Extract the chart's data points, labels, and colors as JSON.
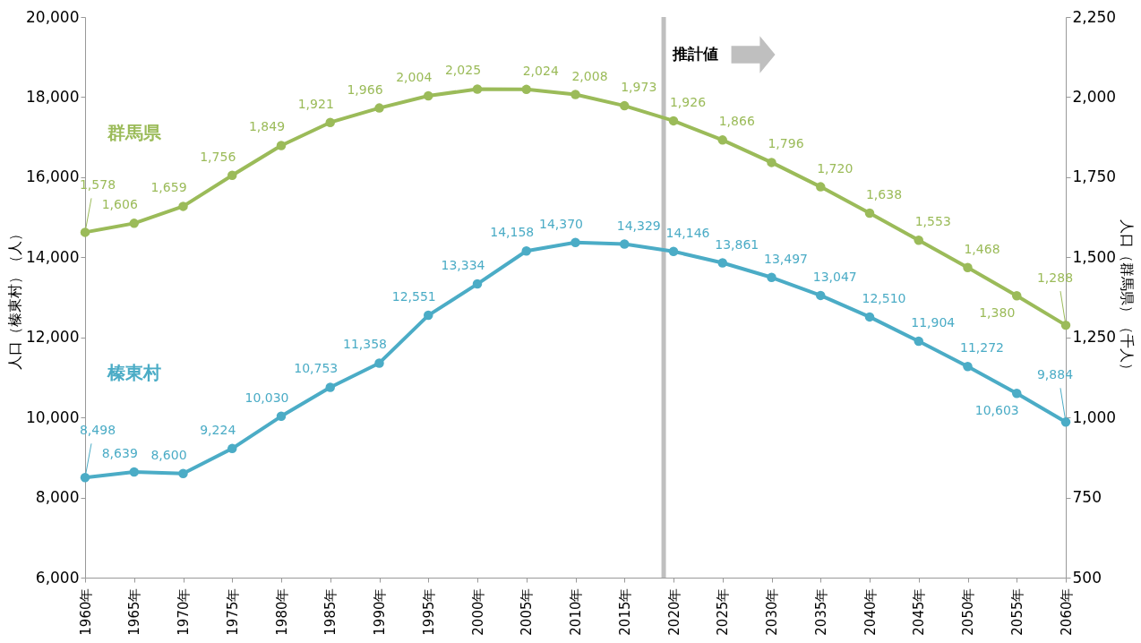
{
  "chart_data": {
    "type": "line",
    "ylabel": "人口（榛東村）（人）",
    "y2label": "人口（群馬県）（千人）",
    "x": [
      1960,
      1965,
      1970,
      1975,
      1980,
      1985,
      1990,
      1995,
      2000,
      2005,
      2010,
      2015,
      2020,
      2025,
      2030,
      2035,
      2040,
      2045,
      2050,
      2055,
      2060
    ],
    "xlim": [
      1960,
      2060
    ],
    "xticks": [
      {
        "value": 1960,
        "label": "1960年"
      },
      {
        "value": 1965,
        "label": "1965年"
      },
      {
        "value": 1970,
        "label": "1970年"
      },
      {
        "value": 1975,
        "label": "1975年"
      },
      {
        "value": 1980,
        "label": "1980年"
      },
      {
        "value": 1985,
        "label": "1985年"
      },
      {
        "value": 1990,
        "label": "1990年"
      },
      {
        "value": 1995,
        "label": "1995年"
      },
      {
        "value": 2000,
        "label": "2000年"
      },
      {
        "value": 2005,
        "label": "2005年"
      },
      {
        "value": 2010,
        "label": "2010年"
      },
      {
        "value": 2015,
        "label": "2015年"
      },
      {
        "value": 2020,
        "label": "2020年"
      },
      {
        "value": 2025,
        "label": "2025年"
      },
      {
        "value": 2030,
        "label": "2030年"
      },
      {
        "value": 2035,
        "label": "2035年"
      },
      {
        "value": 2040,
        "label": "2040年"
      },
      {
        "value": 2045,
        "label": "2045年"
      },
      {
        "value": 2050,
        "label": "2050年"
      },
      {
        "value": 2055,
        "label": "2055年"
      },
      {
        "value": 2060,
        "label": "2060年"
      }
    ],
    "ylim": [
      6000,
      20000
    ],
    "yticks": [
      {
        "value": 6000,
        "label": "6,000"
      },
      {
        "value": 8000,
        "label": "8,000"
      },
      {
        "value": 10000,
        "label": "10,000"
      },
      {
        "value": 12000,
        "label": "12,000"
      },
      {
        "value": 14000,
        "label": "14,000"
      },
      {
        "value": 16000,
        "label": "16,000"
      },
      {
        "value": 18000,
        "label": "18,000"
      },
      {
        "value": 20000,
        "label": "20,000"
      }
    ],
    "y2lim": [
      500,
      2250
    ],
    "y2ticks": [
      500,
      750,
      {
        "value": 1000,
        "label": "1,000"
      },
      {
        "value": 1250,
        "label": "1,250"
      },
      {
        "value": 1500,
        "label": "1,500"
      },
      {
        "value": 1750,
        "label": "1,750"
      },
      {
        "value": 2000,
        "label": "2,000"
      },
      {
        "value": 2250,
        "label": "2,250"
      }
    ],
    "series": [
      {
        "name": "群馬県",
        "color": "#9bbb59",
        "axis": "y2",
        "values": [
          1578,
          1606,
          1659,
          1756,
          1849,
          1921,
          1966,
          2004,
          2025,
          2024,
          2008,
          1973,
          1926,
          1866,
          1796,
          1720,
          1638,
          1553,
          1468,
          1380,
          1288
        ],
        "value_labels": [
          "1,578",
          "1,606",
          "1,659",
          "1,756",
          "1,849",
          "1,921",
          "1,966",
          "2,004",
          "2,025",
          "2,024",
          "2,008",
          "1,973",
          "1,926",
          "1,866",
          "1,796",
          "1,720",
          "1,638",
          "1,553",
          "1,468",
          "1,380",
          "1,288"
        ]
      },
      {
        "name": "榛東村",
        "color": "#4bacc6",
        "values": [
          8498,
          8639,
          8600,
          9224,
          10030,
          10753,
          11358,
          12551,
          13334,
          14158,
          14370,
          14329,
          14146,
          13861,
          13497,
          13047,
          12510,
          11904,
          11272,
          10603,
          9884
        ],
        "value_labels": [
          "8,498",
          "8,639",
          "8,600",
          "9,224",
          "10,030",
          "10,753",
          "11,358",
          "12,551",
          "13,334",
          "14,158",
          "14,370",
          "14,329",
          "14,146",
          "13,861",
          "13,497",
          "13,047",
          "12,510",
          "11,904",
          "11,272",
          "10,603",
          "9,884"
        ]
      }
    ],
    "ref_lines": [
      {
        "axis": "x",
        "value": 2019,
        "label": "推計値",
        "color": "#bfbfbf"
      }
    ],
    "marker": "circle",
    "line_style": "solid",
    "grid": false
  }
}
